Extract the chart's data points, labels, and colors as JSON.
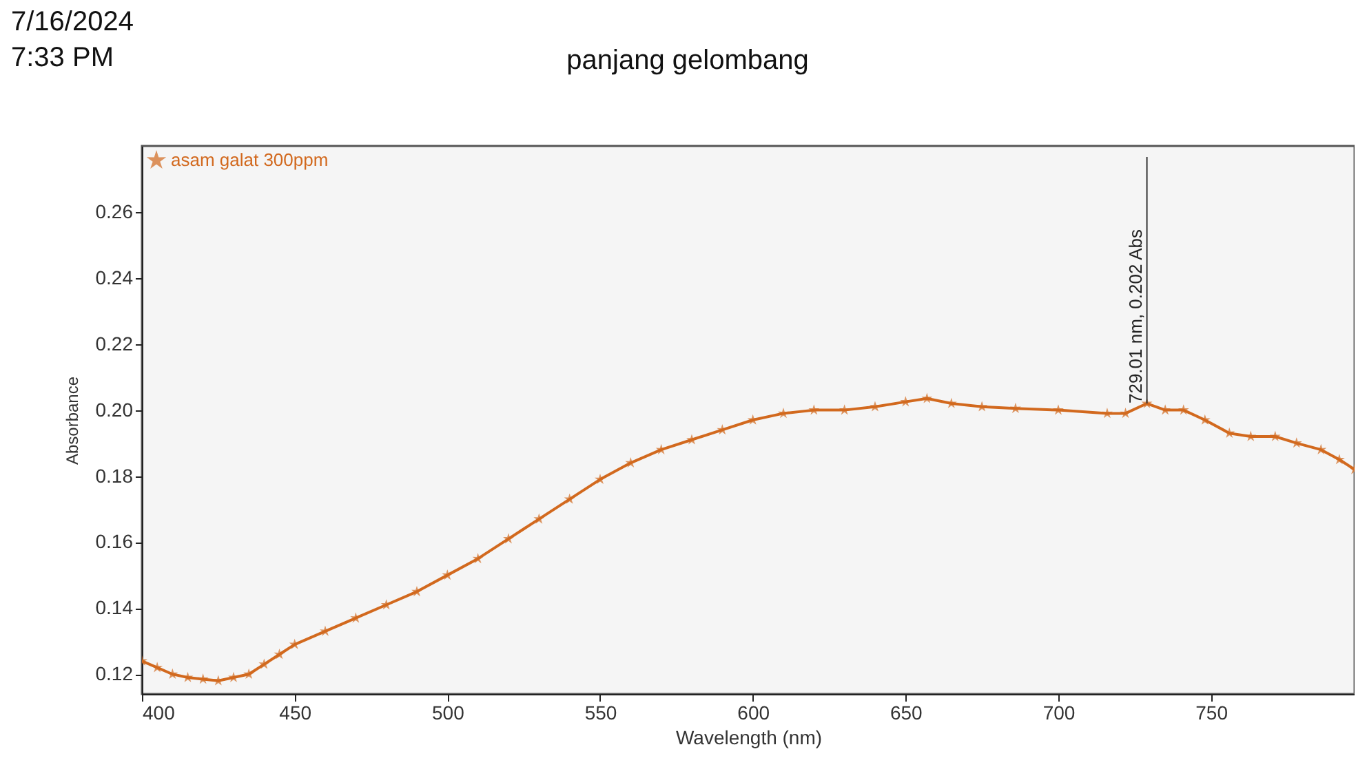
{
  "chart_data": {
    "type": "line",
    "title": "panjang gelombang",
    "xlabel": "Wavelength (nm)",
    "ylabel": "Absorbance",
    "annotations": [
      "7/16/2024",
      "7:33 PM",
      {
        "text": "729.01 nm, 0.202 Abs",
        "x": 729.01,
        "y": 0.202
      }
    ],
    "x": [
      400,
      405,
      410,
      415,
      420,
      425,
      430,
      435,
      440,
      445,
      450,
      460,
      470,
      480,
      490,
      500,
      510,
      520,
      530,
      540,
      550,
      560,
      570,
      580,
      590,
      600,
      610,
      620,
      630,
      640,
      650,
      657,
      665,
      675,
      686,
      700,
      716,
      722,
      729.01,
      735,
      741,
      748,
      756,
      763,
      771,
      778,
      786,
      792,
      797
    ],
    "series": [
      {
        "name": "asam galat 300ppm",
        "color": "#d2691e",
        "values": [
          0.124,
          0.122,
          0.12,
          0.119,
          0.1185,
          0.118,
          0.119,
          0.12,
          0.123,
          0.126,
          0.129,
          0.133,
          0.137,
          0.141,
          0.145,
          0.15,
          0.155,
          0.161,
          0.167,
          0.173,
          0.179,
          0.184,
          0.188,
          0.191,
          0.194,
          0.197,
          0.199,
          0.2,
          0.2,
          0.201,
          0.2025,
          0.2035,
          0.202,
          0.201,
          0.2005,
          0.2,
          0.199,
          0.199,
          0.202,
          0.2,
          0.2,
          0.197,
          0.193,
          0.192,
          0.192,
          0.19,
          0.188,
          0.185,
          0.182
        ]
      }
    ],
    "xlim": [
      400,
      797
    ],
    "xticks": [
      400,
      450,
      500,
      550,
      600,
      650,
      700,
      750
    ],
    "ylim": [
      0.114,
      0.28
    ],
    "yticks": [
      0.12,
      0.14,
      0.16,
      0.18,
      {
        "value": 0.2,
        "label": "0.20"
      },
      0.22,
      0.24,
      0.26
    ],
    "grid": false,
    "legend": "top left",
    "marker": "star",
    "line_style": "solid"
  }
}
